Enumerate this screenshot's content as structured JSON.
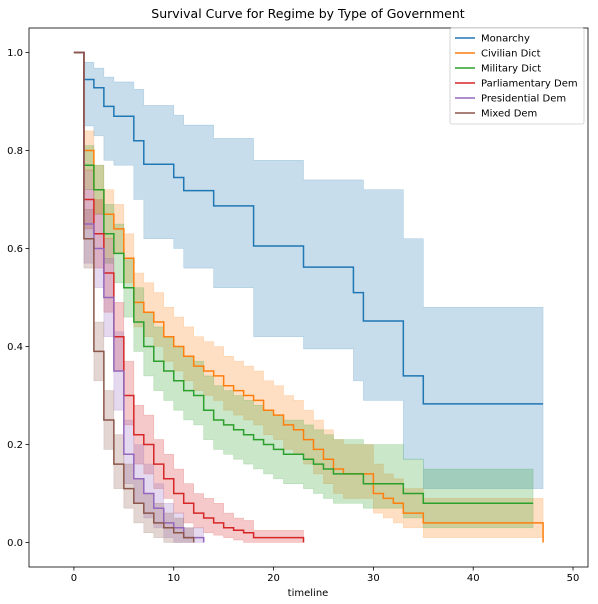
{
  "chart_data": {
    "type": "line",
    "title": "Survival Curve for Regime by Type of Government",
    "xlabel": "timeline",
    "ylabel": "",
    "xlim": [
      -4.5,
      51.5
    ],
    "ylim": [
      -0.05,
      1.05
    ],
    "x_ticks": [
      0,
      10,
      20,
      30,
      40,
      50
    ],
    "y_ticks": [
      0.0,
      0.2,
      0.4,
      0.6,
      0.8,
      1.0
    ],
    "x_tick_labels": [
      "0",
      "10",
      "20",
      "30",
      "40",
      "50"
    ],
    "y_tick_labels": [
      "0.0",
      "0.2",
      "0.4",
      "0.6",
      "0.8",
      "1.0"
    ],
    "grid": false,
    "legend_position": "top-right",
    "step": true,
    "series": [
      {
        "name": "Monarchy",
        "color": "#1f77b4",
        "x": [
          0,
          1,
          2,
          3,
          4,
          6,
          7,
          10,
          11,
          14,
          18,
          23,
          28,
          29,
          33,
          35,
          47
        ],
        "y": [
          1.0,
          0.945,
          0.928,
          0.89,
          0.87,
          0.82,
          0.772,
          0.745,
          0.718,
          0.687,
          0.605,
          0.562,
          0.51,
          0.452,
          0.34,
          0.283,
          0.283
        ],
        "ci_upper": [
          1.0,
          0.98,
          0.968,
          0.95,
          0.94,
          0.925,
          0.892,
          0.872,
          0.852,
          0.825,
          0.78,
          0.74,
          0.74,
          0.72,
          0.62,
          0.48,
          0.48
        ],
        "ci_lower": [
          1.0,
          0.85,
          0.83,
          0.78,
          0.77,
          0.7,
          0.62,
          0.6,
          0.56,
          0.52,
          0.42,
          0.395,
          0.33,
          0.29,
          0.17,
          0.11,
          0.11
        ]
      },
      {
        "name": "Civilian Dict",
        "color": "#ff7f0e",
        "x": [
          0,
          1,
          2,
          3,
          4,
          5,
          6,
          7,
          8,
          9,
          10,
          11,
          12,
          13,
          14,
          15,
          16,
          17,
          18,
          19,
          20,
          21,
          22,
          23,
          24,
          25,
          26,
          27,
          30,
          31,
          32,
          33,
          35,
          47
        ],
        "y": [
          1.0,
          0.8,
          0.72,
          0.67,
          0.64,
          0.58,
          0.49,
          0.47,
          0.45,
          0.42,
          0.4,
          0.38,
          0.36,
          0.35,
          0.34,
          0.32,
          0.31,
          0.3,
          0.29,
          0.27,
          0.26,
          0.24,
          0.23,
          0.21,
          0.19,
          0.17,
          0.15,
          0.14,
          0.1,
          0.09,
          0.08,
          0.06,
          0.04,
          0.0
        ],
        "ci_upper": [
          1.0,
          0.84,
          0.77,
          0.72,
          0.69,
          0.63,
          0.55,
          0.53,
          0.51,
          0.48,
          0.46,
          0.44,
          0.42,
          0.41,
          0.4,
          0.38,
          0.37,
          0.36,
          0.35,
          0.33,
          0.32,
          0.3,
          0.29,
          0.27,
          0.25,
          0.23,
          0.21,
          0.2,
          0.16,
          0.14,
          0.13,
          0.11,
          0.09,
          0.0
        ],
        "ci_lower": [
          1.0,
          0.76,
          0.67,
          0.62,
          0.59,
          0.53,
          0.44,
          0.42,
          0.4,
          0.37,
          0.35,
          0.33,
          0.31,
          0.3,
          0.29,
          0.27,
          0.26,
          0.25,
          0.24,
          0.22,
          0.21,
          0.19,
          0.18,
          0.16,
          0.14,
          0.12,
          0.1,
          0.09,
          0.06,
          0.05,
          0.04,
          0.03,
          0.01,
          0.0
        ]
      },
      {
        "name": "Military Dict",
        "color": "#2ca02c",
        "x": [
          0,
          1,
          2,
          3,
          4,
          5,
          6,
          7,
          8,
          9,
          10,
          11,
          12,
          13,
          14,
          15,
          16,
          17,
          18,
          19,
          20,
          21,
          23,
          24,
          25,
          26,
          28,
          29,
          33,
          35,
          46
        ],
        "y": [
          1.0,
          0.77,
          0.72,
          0.63,
          0.59,
          0.52,
          0.45,
          0.4,
          0.37,
          0.35,
          0.33,
          0.31,
          0.3,
          0.27,
          0.25,
          0.24,
          0.23,
          0.22,
          0.21,
          0.2,
          0.19,
          0.18,
          0.17,
          0.16,
          0.15,
          0.14,
          0.14,
          0.12,
          0.1,
          0.08,
          0.08
        ],
        "ci_upper": [
          1.0,
          0.81,
          0.77,
          0.69,
          0.65,
          0.58,
          0.52,
          0.47,
          0.44,
          0.42,
          0.4,
          0.38,
          0.37,
          0.34,
          0.32,
          0.31,
          0.3,
          0.29,
          0.28,
          0.27,
          0.26,
          0.25,
          0.24,
          0.23,
          0.22,
          0.21,
          0.21,
          0.2,
          0.17,
          0.15,
          0.15
        ],
        "ci_lower": [
          1.0,
          0.72,
          0.67,
          0.57,
          0.53,
          0.46,
          0.39,
          0.34,
          0.31,
          0.29,
          0.27,
          0.25,
          0.24,
          0.21,
          0.19,
          0.18,
          0.17,
          0.16,
          0.15,
          0.14,
          0.13,
          0.12,
          0.11,
          0.1,
          0.09,
          0.08,
          0.08,
          0.07,
          0.05,
          0.03,
          0.03
        ]
      },
      {
        "name": "Parliamentary Dem",
        "color": "#d62728",
        "x": [
          0,
          1,
          2,
          3,
          4,
          5,
          6,
          7,
          8,
          9,
          10,
          11,
          12,
          13,
          14,
          15,
          16,
          17,
          18,
          20,
          23
        ],
        "y": [
          1.0,
          0.7,
          0.63,
          0.55,
          0.42,
          0.3,
          0.22,
          0.2,
          0.16,
          0.13,
          0.1,
          0.08,
          0.06,
          0.05,
          0.04,
          0.03,
          0.025,
          0.02,
          0.01,
          0.01,
          0.0
        ],
        "ci_upper": [
          1.0,
          0.76,
          0.7,
          0.62,
          0.49,
          0.37,
          0.28,
          0.26,
          0.21,
          0.18,
          0.15,
          0.12,
          0.1,
          0.09,
          0.08,
          0.06,
          0.05,
          0.045,
          0.025,
          0.025,
          0.0
        ],
        "ci_lower": [
          1.0,
          0.64,
          0.56,
          0.47,
          0.35,
          0.24,
          0.16,
          0.14,
          0.11,
          0.09,
          0.06,
          0.04,
          0.03,
          0.02,
          0.015,
          0.01,
          0.005,
          0.0,
          0.0,
          0.0,
          0.0
        ]
      },
      {
        "name": "Presidential Dem",
        "color": "#9467bd",
        "x": [
          0,
          1,
          2,
          3,
          4,
          5,
          6,
          7,
          8,
          9,
          10,
          11,
          13
        ],
        "y": [
          1.0,
          0.65,
          0.6,
          0.5,
          0.35,
          0.18,
          0.13,
          0.1,
          0.07,
          0.04,
          0.03,
          0.01,
          0.0
        ],
        "ci_upper": [
          1.0,
          0.72,
          0.67,
          0.58,
          0.43,
          0.25,
          0.2,
          0.16,
          0.12,
          0.08,
          0.06,
          0.03,
          0.0
        ],
        "ci_lower": [
          1.0,
          0.57,
          0.52,
          0.42,
          0.27,
          0.12,
          0.08,
          0.05,
          0.03,
          0.01,
          0.0,
          0.0,
          0.0
        ]
      },
      {
        "name": "Mixed Dem",
        "color": "#8c564b",
        "x": [
          0,
          1,
          2,
          3,
          4,
          5,
          6,
          7,
          8,
          9,
          10,
          11,
          12
        ],
        "y": [
          1.0,
          0.62,
          0.39,
          0.25,
          0.16,
          0.11,
          0.08,
          0.06,
          0.04,
          0.03,
          0.02,
          0.01,
          0.0
        ],
        "ci_upper": [
          1.0,
          0.68,
          0.45,
          0.31,
          0.22,
          0.16,
          0.13,
          0.1,
          0.08,
          0.06,
          0.05,
          0.03,
          0.0
        ],
        "ci_lower": [
          1.0,
          0.56,
          0.33,
          0.19,
          0.11,
          0.07,
          0.04,
          0.02,
          0.01,
          0.0,
          0.0,
          0.0,
          0.0
        ]
      }
    ]
  }
}
